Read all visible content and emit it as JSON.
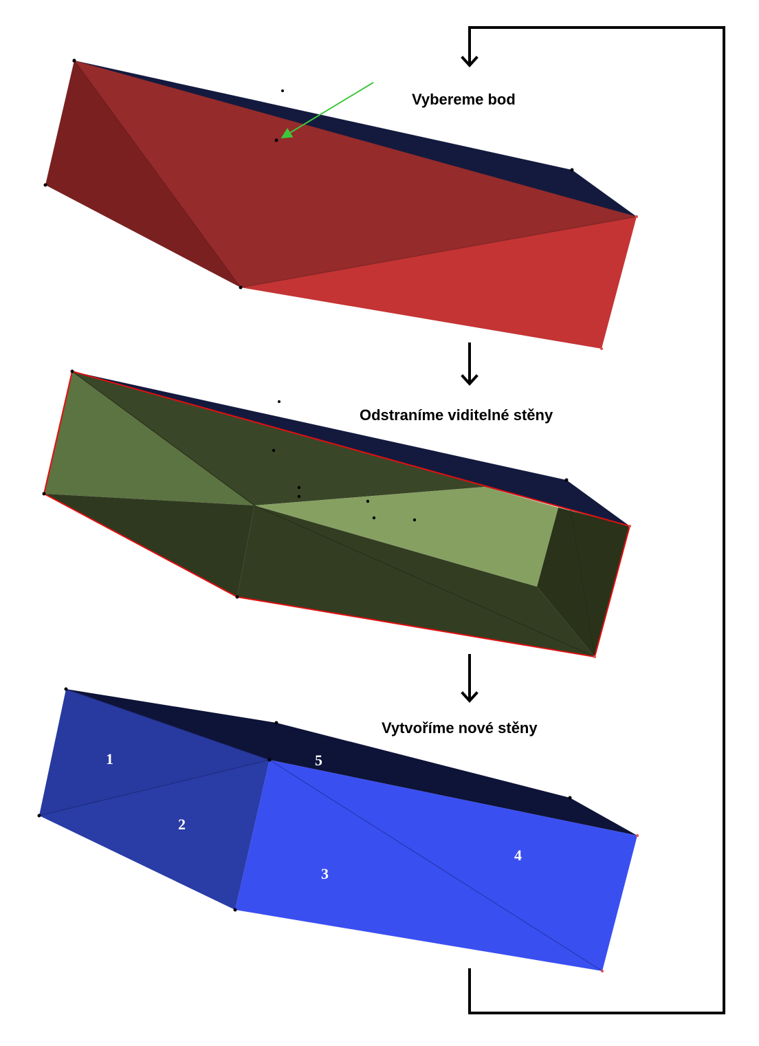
{
  "steps": [
    {
      "label": "Vybereme bod"
    },
    {
      "label": "Odstraníme viditelné stěny"
    },
    {
      "label": "Vytvoříme nové stěny"
    }
  ],
  "new_faces": [
    "1",
    "2",
    "3",
    "4",
    "5"
  ],
  "colors": {
    "step1_main": "#952b2b",
    "step1_left": "#7a2020",
    "step1_lower": "#c43434",
    "top_face": "#141a3e",
    "step2_light": "#86a062",
    "step2_left": "#5c7342",
    "step2_dark": "#333d22",
    "step3_left": "#283aa0",
    "step3_front": "#3a4ff0",
    "edge_red": "#e01010",
    "pointer_arrow": "#3cc83c",
    "loop_line": "#000000"
  }
}
